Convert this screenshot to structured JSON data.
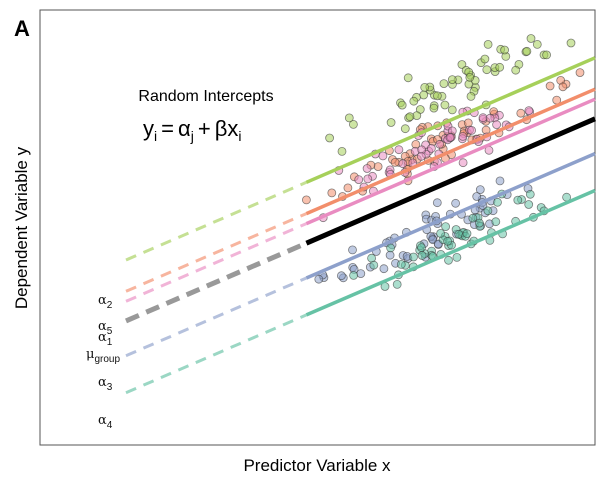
{
  "panel_label": "A",
  "chart_data": {
    "type": "scatter",
    "title": "Random Intercepts",
    "formula": {
      "lhs": "y",
      "lhs_sub": "i",
      "eq": "=",
      "a": "α",
      "a_sub": "j",
      "plus": "+",
      "b": "β",
      "x": "x",
      "x_sub": "i"
    },
    "xlabel": "Predictor Variable x",
    "ylabel": "Dependent Variable y",
    "xlim": [
      0,
      10
    ],
    "ylim": [
      0,
      10
    ],
    "grid": false,
    "legend": "none",
    "slope": 0.55,
    "observed_x_range": [
      4.8,
      10
    ],
    "dash_x_range": [
      1.55,
      4.8
    ],
    "groups": [
      {
        "key": "alpha2",
        "letter": "α",
        "sub": "2",
        "intercept": 3.4,
        "color": "#a6d05a",
        "dot_offset": 0.75
      },
      {
        "key": "alpha5",
        "letter": "α",
        "sub": "5",
        "intercept": 2.68,
        "color": "#f28e6b",
        "dot_offset": 0.25
      },
      {
        "key": "alpha1",
        "letter": "α",
        "sub": "1",
        "intercept": 2.45,
        "color": "#e98cc1",
        "dot_offset": 0.45
      },
      {
        "key": "mu",
        "letter": "μ",
        "sub": "group",
        "intercept": 2.0,
        "color": "#000000",
        "dash_color": "#999999",
        "dot_offset": null
      },
      {
        "key": "alpha3",
        "letter": "α",
        "sub": "3",
        "intercept": 1.2,
        "color": "#8da0cb",
        "dot_offset": -0.25
      },
      {
        "key": "alpha4",
        "letter": "α",
        "sub": "4",
        "intercept": 0.35,
        "color": "#66c2a5",
        "dot_offset": 0.2
      }
    ]
  }
}
